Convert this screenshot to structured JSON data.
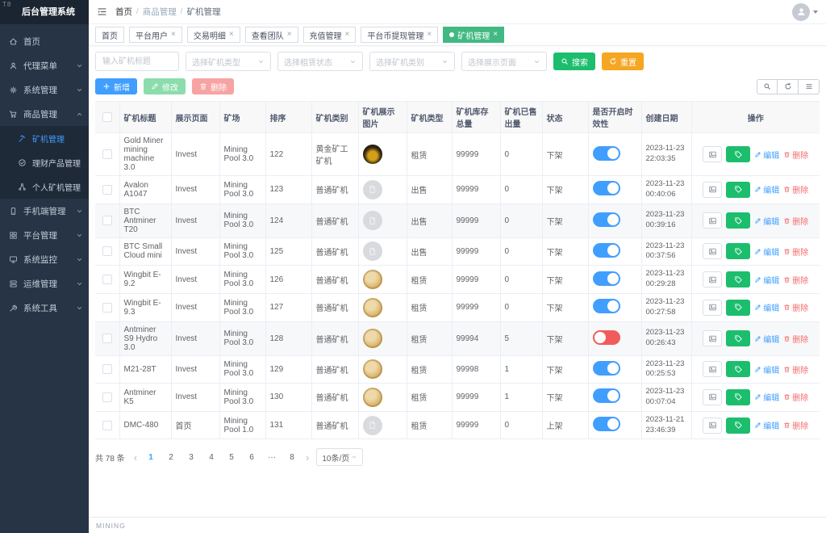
{
  "app": {
    "logo_alt": "T8",
    "title": "后台管理系统",
    "footer_text": "MINING"
  },
  "sidebar": {
    "items": [
      {
        "label": "首页",
        "icon": "home-icon"
      },
      {
        "label": "代理菜单",
        "icon": "agent-icon"
      },
      {
        "label": "系统管理",
        "icon": "gear-icon"
      },
      {
        "label": "商品管理",
        "icon": "cart-icon"
      },
      {
        "label": "手机端管理",
        "icon": "phone-icon"
      },
      {
        "label": "平台管理",
        "icon": "grid-icon"
      },
      {
        "label": "系统监控",
        "icon": "monitor-icon"
      },
      {
        "label": "运维管理",
        "icon": "server-icon"
      },
      {
        "label": "系统工具",
        "icon": "tools-icon"
      }
    ],
    "submenu": [
      {
        "label": "矿机管理",
        "icon": "pickaxe-icon",
        "active": true
      },
      {
        "label": "理财产品管理",
        "icon": "check-circle-icon",
        "active": false
      },
      {
        "label": "个人矿机管理",
        "icon": "share-icon",
        "active": false
      }
    ]
  },
  "breadcrumb": {
    "items": [
      "首页",
      "商品管理",
      "矿机管理"
    ]
  },
  "tabs": [
    {
      "label": "首页",
      "closable": false,
      "active": false
    },
    {
      "label": "平台用户",
      "closable": true,
      "active": false
    },
    {
      "label": "交易明细",
      "closable": true,
      "active": false
    },
    {
      "label": "查看团队",
      "closable": true,
      "active": false
    },
    {
      "label": "充值管理",
      "closable": true,
      "active": false
    },
    {
      "label": "平台币提现管理",
      "closable": true,
      "active": false
    },
    {
      "label": "矿机管理",
      "closable": true,
      "active": true
    }
  ],
  "filters": {
    "title_placeholder": "输入矿机标题",
    "machine_type_placeholder": "选择矿机类型",
    "lease_status_placeholder": "选择租赁状态",
    "machine_category_placeholder": "选择矿机类别",
    "display_page_placeholder": "选择展示页面",
    "search_label": "搜索",
    "reset_label": "重置"
  },
  "toolbar": {
    "add_label": "新增",
    "edit_label": "修改",
    "delete_label": "删除"
  },
  "table": {
    "columns": [
      "矿机标题",
      "展示页面",
      "矿场",
      "排序",
      "矿机类别",
      "矿机展示图片",
      "矿机类型",
      "矿机库存总量",
      "矿机已售出量",
      "状态",
      "是否开启时效性",
      "创建日期",
      "操作"
    ],
    "edit_label": "编辑",
    "delete_label": "删除",
    "rows": [
      {
        "title": "Gold Miner mining machine 3.0",
        "page": "Invest",
        "farm": "Mining Pool 3.0",
        "sort": "122",
        "category": "黄金矿工矿机",
        "image": "gold",
        "type": "租赁",
        "stock": "99999",
        "sold": "0",
        "status": "下架",
        "toggle": "on",
        "date": "2023-11-23 22:03:35"
      },
      {
        "title": "Avalon A1047",
        "page": "Invest",
        "farm": "Mining Pool 3.0",
        "sort": "123",
        "category": "普通矿机",
        "image": "placeholder",
        "type": "出售",
        "stock": "99999",
        "sold": "0",
        "status": "下架",
        "toggle": "on",
        "date": "2023-11-23 00:40:06"
      },
      {
        "title": "BTC Antminer T20",
        "page": "Invest",
        "farm": "Mining Pool 3.0",
        "sort": "124",
        "category": "普通矿机",
        "image": "placeholder",
        "type": "出售",
        "stock": "99999",
        "sold": "0",
        "status": "下架",
        "toggle": "on",
        "date": "2023-11-23 00:39:16"
      },
      {
        "title": "BTC Small Cloud mini",
        "page": "Invest",
        "farm": "Mining Pool 3.0",
        "sort": "125",
        "category": "普通矿机",
        "image": "placeholder",
        "type": "出售",
        "stock": "99999",
        "sold": "0",
        "status": "下架",
        "toggle": "on",
        "date": "2023-11-23 00:37:56"
      },
      {
        "title": "Wingbit E-9.2",
        "page": "Invest",
        "farm": "Mining Pool 3.0",
        "sort": "126",
        "category": "普通矿机",
        "image": "coin",
        "type": "租赁",
        "stock": "99999",
        "sold": "0",
        "status": "下架",
        "toggle": "on",
        "date": "2023-11-23 00:29:28"
      },
      {
        "title": "Wingbit E-9.3",
        "page": "Invest",
        "farm": "Mining Pool 3.0",
        "sort": "127",
        "category": "普通矿机",
        "image": "coin",
        "type": "租赁",
        "stock": "99999",
        "sold": "0",
        "status": "下架",
        "toggle": "on",
        "date": "2023-11-23 00:27:58"
      },
      {
        "title": "Antminer S9 Hydro 3.0",
        "page": "Invest",
        "farm": "Mining Pool 3.0",
        "sort": "128",
        "category": "普通矿机",
        "image": "coin",
        "type": "租赁",
        "stock": "99994",
        "sold": "5",
        "status": "下架",
        "toggle": "off",
        "date": "2023-11-23 00:26:43"
      },
      {
        "title": "M21-28T",
        "page": "Invest",
        "farm": "Mining Pool 3.0",
        "sort": "129",
        "category": "普通矿机",
        "image": "coin",
        "type": "租赁",
        "stock": "99998",
        "sold": "1",
        "status": "下架",
        "toggle": "on",
        "date": "2023-11-23 00:25:53"
      },
      {
        "title": "Antminer K5",
        "page": "Invest",
        "farm": "Mining Pool 3.0",
        "sort": "130",
        "category": "普通矿机",
        "image": "coin",
        "type": "租赁",
        "stock": "99999",
        "sold": "1",
        "status": "下架",
        "toggle": "on",
        "date": "2023-11-23 00:07:04"
      },
      {
        "title": "DMC-480",
        "page": "首页",
        "farm": "Mining Pool 1.0",
        "sort": "131",
        "category": "普通矿机",
        "image": "placeholder",
        "type": "租赁",
        "stock": "99999",
        "sold": "0",
        "status": "上架",
        "toggle": "on",
        "date": "2023-11-21 23:46:39"
      }
    ]
  },
  "pagination": {
    "total_label": "共 78 条",
    "pages": [
      "1",
      "2",
      "3",
      "4",
      "5",
      "6",
      "···",
      "8"
    ],
    "active_page": "1",
    "page_size_label": "10条/页"
  },
  "colors": {
    "accent_blue": "#409eff",
    "accent_green": "#1cbe6e",
    "tab_green": "#42b983",
    "warning_orange": "#f5a623",
    "danger_red": "#f56c6c",
    "sidebar_bg": "#263445"
  }
}
